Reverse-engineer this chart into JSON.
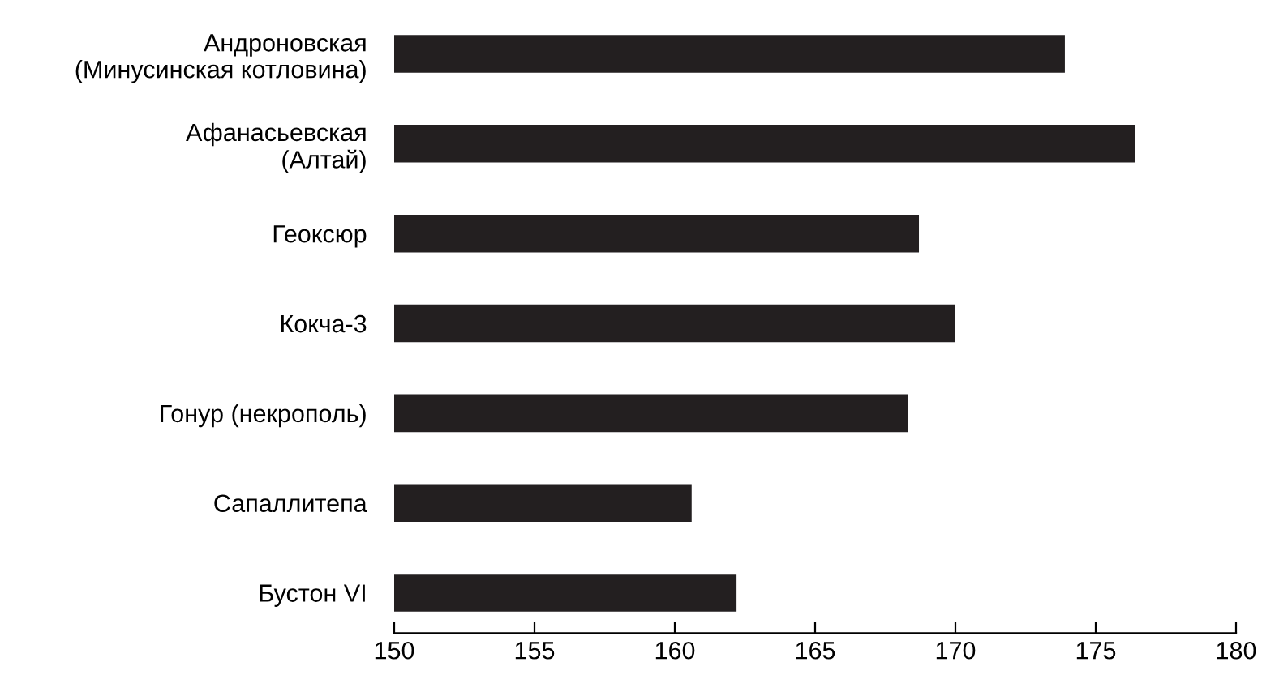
{
  "chart_data": {
    "type": "bar",
    "orientation": "horizontal",
    "categories": [
      "Андроновская\n(Минусинская котловина)",
      "Афанасьевская\n(Алтай)",
      "Геоксюр",
      "Кокча-3",
      "Гонур (некрополь)",
      "Сапаллитепа",
      "Бустон VI"
    ],
    "values": [
      173.9,
      176.4,
      168.7,
      170.0,
      168.3,
      160.6,
      162.2
    ],
    "color": "#231f20",
    "xlim": [
      150,
      180
    ],
    "xticks": [
      150,
      155,
      160,
      165,
      170,
      175,
      180
    ],
    "grid": false
  }
}
